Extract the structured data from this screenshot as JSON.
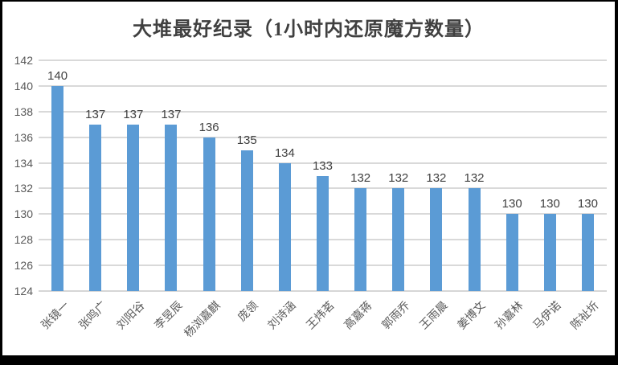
{
  "chart_data": {
    "type": "bar",
    "title": "大堆最好纪录（1小时内还原魔方数量）",
    "categories": [
      "张镜一",
      "张鸣广",
      "刘阳谷",
      "李昱辰",
      "杨浏嘉麒",
      "庞领",
      "刘诗涵",
      "王炜茗",
      "高嘉蒋",
      "郭雨乔",
      "王雨晨",
      "姜博文",
      "孙嘉林",
      "马伊诺",
      "陈祉圻"
    ],
    "values": [
      140,
      137,
      137,
      137,
      136,
      135,
      134,
      133,
      132,
      132,
      132,
      132,
      130,
      130,
      130
    ],
    "xlabel": "",
    "ylabel": "",
    "ylim": [
      124,
      142
    ],
    "yticks": [
      124,
      126,
      128,
      130,
      132,
      134,
      136,
      138,
      140,
      142
    ],
    "grid": true,
    "legend": false,
    "data_labels": true,
    "colors": {
      "bar": "#5B9BD5",
      "gridline": "#D9D9D9",
      "axis_text": "#595959",
      "title_text": "#404040",
      "frame_border": "#000000",
      "background": "#FFFFFF"
    }
  }
}
